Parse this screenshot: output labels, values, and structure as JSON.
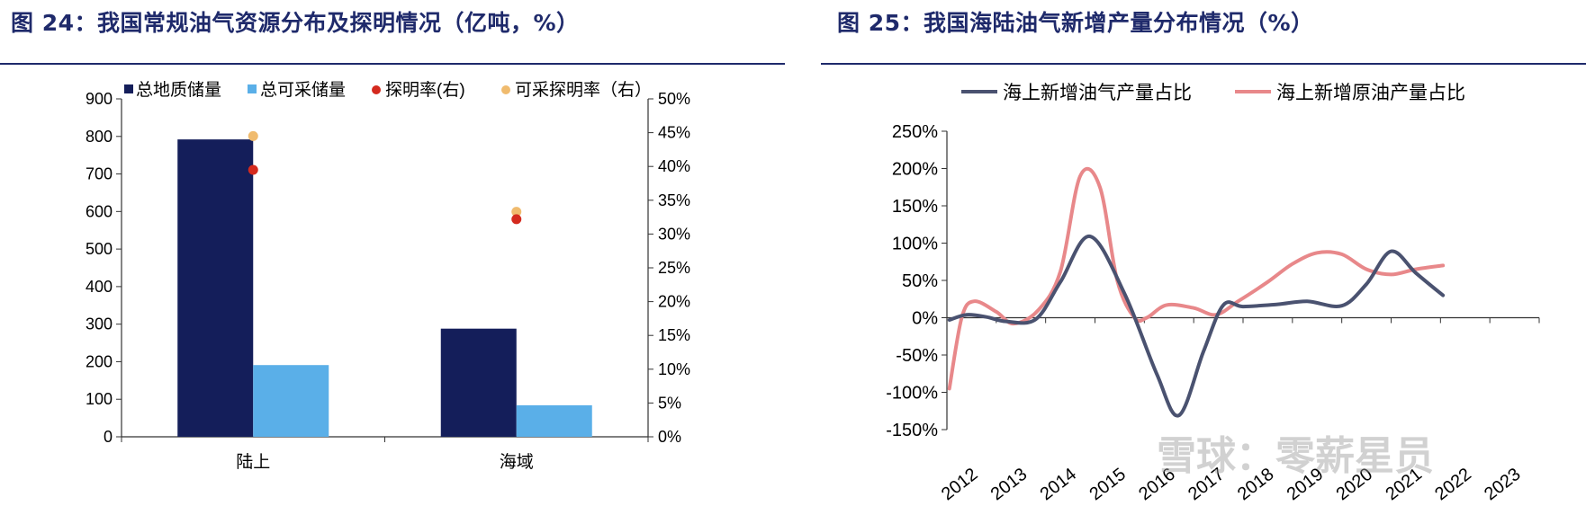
{
  "left_title": "图 24：我国常规油气资源分布及探明情况（亿吨，%）",
  "right_title": "图 25：我国海陆油气新增产量分布情况（%）",
  "watermark": "雪球：零薪星员",
  "colors": {
    "navy": "#141e5a",
    "lightblue": "#5aafe8",
    "red": "#d42a1e",
    "orange": "#f0bb6e",
    "slate": "#4a5270",
    "pink": "#e8888a",
    "title": "#1f2a6b"
  },
  "chart_data": [
    {
      "type": "bar",
      "categories": [
        "陆上",
        "海域"
      ],
      "series": [
        {
          "name": "总地质储量",
          "axis": "left",
          "values": [
            792,
            288
          ]
        },
        {
          "name": "总可采储量",
          "axis": "left",
          "values": [
            191,
            84
          ]
        }
      ],
      "scatter_series": [
        {
          "name": "探明率(右)",
          "axis": "right",
          "values": [
            0.395,
            0.322
          ]
        },
        {
          "name": "可采探明率（右）",
          "axis": "right",
          "values": [
            0.445,
            0.333
          ]
        }
      ],
      "ylim": [
        0,
        900
      ],
      "yticks": [
        "0",
        "100",
        "200",
        "300",
        "400",
        "500",
        "600",
        "700",
        "800",
        "900"
      ],
      "y2lim": [
        0,
        0.5
      ],
      "y2ticks": [
        "0%",
        "5%",
        "10%",
        "15%",
        "20%",
        "25%",
        "30%",
        "35%",
        "40%",
        "45%",
        "50%"
      ],
      "legend": "top"
    },
    {
      "type": "line",
      "x": [
        "2012",
        "2013",
        "2014",
        "2015",
        "2016",
        "2017",
        "2018",
        "2019",
        "2020",
        "2021",
        "2022",
        "2023"
      ],
      "series": [
        {
          "name": "海上新增油气产量占比",
          "points": [
            [
              2011.55,
              -0.03
            ],
            [
              2011.9,
              0.04
            ],
            [
              2012.3,
              0.01
            ],
            [
              2012.7,
              -0.05
            ],
            [
              2013.3,
              -0.02
            ],
            [
              2013.8,
              0.48
            ],
            [
              2014.4,
              1.09
            ],
            [
              2015.1,
              0.32
            ],
            [
              2015.75,
              -0.75
            ],
            [
              2016.2,
              -1.31
            ],
            [
              2016.7,
              -0.45
            ],
            [
              2017.1,
              0.17
            ],
            [
              2017.5,
              0.15
            ],
            [
              2018.2,
              0.18
            ],
            [
              2018.8,
              0.22
            ],
            [
              2019.5,
              0.16
            ],
            [
              2020.0,
              0.45
            ],
            [
              2020.5,
              0.89
            ],
            [
              2021.0,
              0.6
            ],
            [
              2021.55,
              0.3
            ]
          ]
        },
        {
          "name": "海上新增原油产量占比",
          "points": [
            [
              2011.55,
              -0.95
            ],
            [
              2011.8,
              0.0
            ],
            [
              2012.05,
              0.22
            ],
            [
              2012.5,
              0.08
            ],
            [
              2012.85,
              -0.08
            ],
            [
              2013.35,
              0.1
            ],
            [
              2013.8,
              0.62
            ],
            [
              2014.2,
              1.9
            ],
            [
              2014.6,
              1.75
            ],
            [
              2014.95,
              0.5
            ],
            [
              2015.3,
              0.0
            ],
            [
              2015.55,
              0.0
            ],
            [
              2015.95,
              0.17
            ],
            [
              2016.5,
              0.13
            ],
            [
              2016.95,
              0.04
            ],
            [
              2017.4,
              0.22
            ],
            [
              2018.0,
              0.48
            ],
            [
              2018.5,
              0.72
            ],
            [
              2019.0,
              0.87
            ],
            [
              2019.5,
              0.85
            ],
            [
              2020.0,
              0.65
            ],
            [
              2020.5,
              0.58
            ],
            [
              2021.0,
              0.65
            ],
            [
              2021.55,
              0.7
            ]
          ]
        }
      ],
      "ylim": [
        -1.5,
        2.5
      ],
      "yticks": [
        "-150%",
        "-100%",
        "-50%",
        "0%",
        "50%",
        "100%",
        "150%",
        "200%",
        "250%"
      ],
      "legend": "top"
    }
  ]
}
